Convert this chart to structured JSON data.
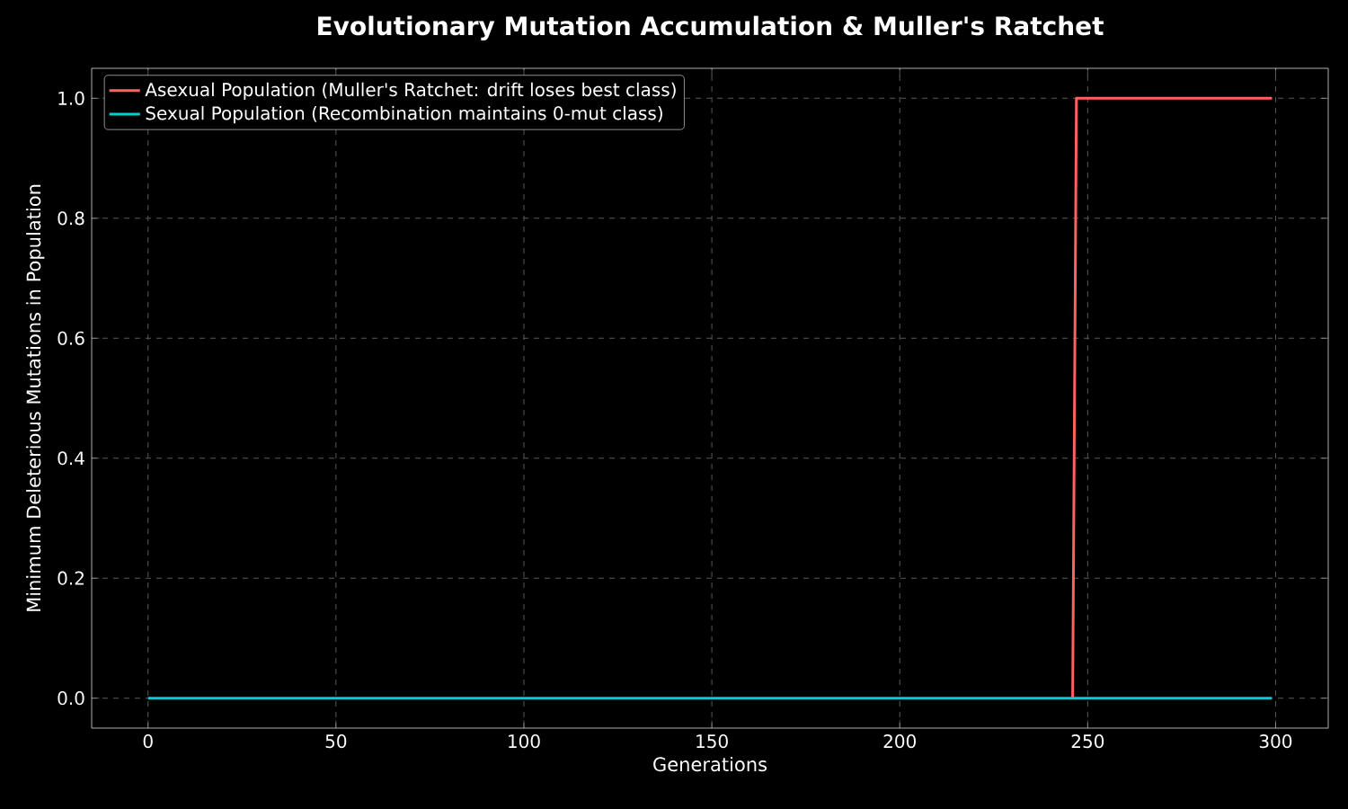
{
  "chart_data": {
    "type": "line",
    "title": "Evolutionary Mutation Accumulation & Muller's Ratchet",
    "xlabel": "Generations",
    "ylabel": "Minimum Deleterious Mutations in Population",
    "series": [
      {
        "name": "Asexual Population (Muller's Ratchet: drift loses best class)",
        "color": "#ff6060",
        "x": [
          246,
          247,
          299
        ],
        "values": [
          0,
          1,
          1
        ]
      },
      {
        "name": "Sexual Population (Recombination maintains 0-mut class)",
        "color": "#00cfcf",
        "x": [
          0,
          299
        ],
        "values": [
          0,
          0
        ]
      }
    ],
    "xlim": [
      -15,
      314
    ],
    "ylim": [
      -0.05,
      1.05
    ],
    "xticks": [
      0,
      50,
      100,
      150,
      200,
      250,
      300
    ],
    "yticks": [
      {
        "value": 0,
        "label": "0.0"
      },
      {
        "value": 0.2,
        "label": "0.2"
      },
      {
        "value": 0.4,
        "label": "0.4"
      },
      {
        "value": 0.6,
        "label": "0.6"
      },
      {
        "value": 0.8,
        "label": "0.8"
      },
      {
        "value": 1,
        "label": "1.0"
      }
    ],
    "grid": true,
    "legend": "top left",
    "marker": "none",
    "line_style": "solid"
  }
}
